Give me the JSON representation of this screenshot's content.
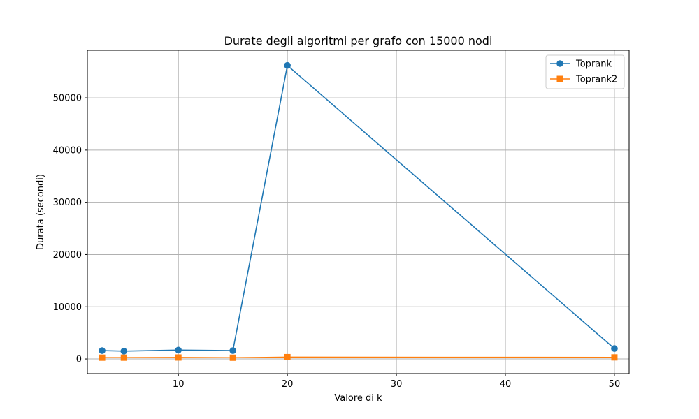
{
  "chart_data": {
    "type": "line",
    "title": "Durate degli algoritmi per grafo con 15000 nodi",
    "xlabel": "Valore di k",
    "ylabel": "Durata (secondi)",
    "xlim": [
      1.65,
      51.35
    ],
    "ylim": [
      -2800,
      59100
    ],
    "xticks": [
      10,
      20,
      30,
      40,
      50
    ],
    "yticks": [
      0,
      10000,
      20000,
      30000,
      40000,
      50000
    ],
    "grid": true,
    "legend_position": "top-right",
    "series": [
      {
        "name": "Toprank",
        "color": "#1f77b4",
        "marker": "circle",
        "x": [
          3,
          5,
          10,
          15,
          20,
          50
        ],
        "y": [
          1600,
          1500,
          1700,
          1600,
          56200,
          2000
        ]
      },
      {
        "name": "Toprank2",
        "color": "#ff7f0e",
        "marker": "square",
        "x": [
          3,
          5,
          10,
          15,
          20,
          50
        ],
        "y": [
          250,
          250,
          280,
          240,
          350,
          300
        ]
      }
    ]
  }
}
